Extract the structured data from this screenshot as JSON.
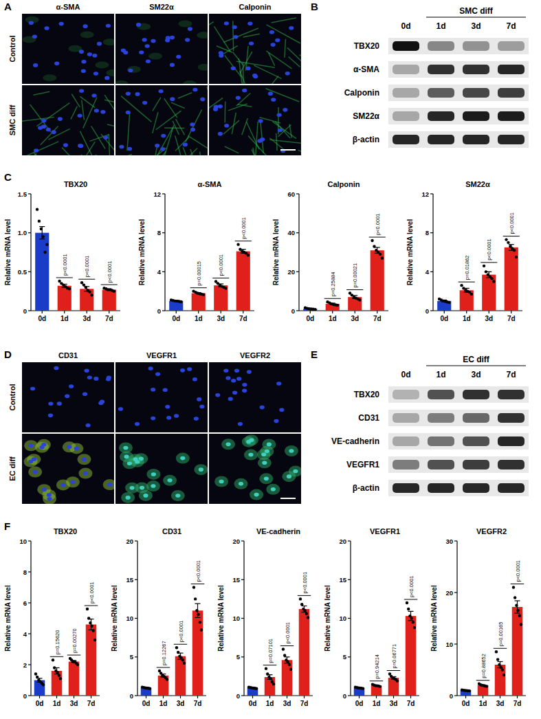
{
  "panel_labels": [
    "A",
    "B",
    "C",
    "D",
    "E",
    "F"
  ],
  "images": [
    {
      "columns": [
        "α-SMA",
        "SM22α",
        "Calponin"
      ],
      "rows": [
        "Control",
        "SMC diff"
      ]
    },
    {
      "columns": [
        "CD31",
        "VEGFR1",
        "VEGFR2"
      ],
      "rows": [
        "Control",
        "EC diff"
      ]
    }
  ],
  "blots": [
    {
      "group": "SMC diff",
      "lanes": [
        "0d",
        "1d",
        "3d",
        "7d"
      ],
      "rows": [
        {
          "name": "TBX20",
          "bands": [
            1.0,
            0.45,
            0.4,
            0.35
          ]
        },
        {
          "name": "α-SMA",
          "bands": [
            0.3,
            0.85,
            0.85,
            0.9
          ]
        },
        {
          "name": "Calponin",
          "bands": [
            0.3,
            0.65,
            0.75,
            0.8
          ]
        },
        {
          "name": "SM22α",
          "bands": [
            0.3,
            0.9,
            0.95,
            0.95
          ]
        },
        {
          "name": "β-actin",
          "bands": [
            0.9,
            0.9,
            0.9,
            0.9
          ]
        }
      ]
    },
    {
      "group": "EC diff",
      "lanes": [
        "0d",
        "1d",
        "3d",
        "7d"
      ],
      "rows": [
        {
          "name": "TBX20",
          "bands": [
            0.25,
            0.7,
            0.85,
            0.85
          ]
        },
        {
          "name": "CD31",
          "bands": [
            0.3,
            0.5,
            0.6,
            0.85
          ]
        },
        {
          "name": "VE-cadherin",
          "bands": [
            0.3,
            0.55,
            0.7,
            0.9
          ]
        },
        {
          "name": "VEGFR1",
          "bands": [
            0.5,
            0.7,
            0.8,
            0.85
          ]
        },
        {
          "name": "β-actin",
          "bands": [
            0.9,
            0.9,
            0.9,
            0.9
          ]
        }
      ]
    }
  ],
  "chart_data": [
    {
      "type": "bar",
      "title": "TBX20",
      "y_label": "Relative mRNA level",
      "categories": [
        "0d",
        "1d",
        "3d",
        "7d"
      ],
      "values": [
        1.0,
        0.32,
        0.28,
        0.27
      ],
      "errors": [
        0.08,
        0.02,
        0.03,
        0.01
      ],
      "points": [
        [
          1.3,
          1.15,
          1.05,
          0.95,
          0.75,
          0.85
        ],
        [
          0.38,
          0.35,
          0.33,
          0.31,
          0.29,
          0.28
        ],
        [
          0.36,
          0.33,
          0.3,
          0.26,
          0.24,
          0.2
        ],
        [
          0.29,
          0.28,
          0.27,
          0.27,
          0.26,
          0.25
        ]
      ],
      "colors": [
        "#1a3cc8",
        "#e0201b",
        "#e0201b",
        "#e0201b"
      ],
      "ylim": [
        0,
        1.5
      ],
      "yticks": [
        0,
        0.5,
        {
          "value": 1,
          "label": "1.0"
        },
        1.5
      ],
      "p_values": [
        null,
        "p<0.0001",
        "p<0.0001",
        "p<0.0001"
      ]
    },
    {
      "type": "bar",
      "title": "α-SMA",
      "y_label": "Relative mRNA level",
      "categories": [
        "0d",
        "1d",
        "3d",
        "7d"
      ],
      "values": [
        1.0,
        1.8,
        2.6,
        6.1
      ],
      "errors": [
        0.05,
        0.06,
        0.15,
        0.2
      ],
      "points": [
        [
          1.1,
          1.05,
          1.0,
          0.98,
          0.95,
          0.92
        ],
        [
          2.0,
          1.9,
          1.8,
          1.75,
          1.7,
          1.65
        ],
        [
          3.0,
          2.8,
          2.6,
          2.5,
          2.4,
          2.3
        ],
        [
          6.8,
          6.3,
          6.1,
          6.0,
          5.9,
          5.7
        ]
      ],
      "colors": [
        "#1a3cc8",
        "#e0201b",
        "#e0201b",
        "#e0201b"
      ],
      "ylim": [
        0,
        12
      ],
      "yticks": [
        0,
        4,
        8,
        12
      ],
      "p_values": [
        null,
        "p=0.00015",
        "p<0.0001",
        "p<0.0001"
      ]
    },
    {
      "type": "bar",
      "title": "Calponin",
      "y_label": "Relative mRNA level",
      "categories": [
        "0d",
        "1d",
        "3d",
        "7d"
      ],
      "values": [
        1.0,
        3.5,
        7.0,
        31.0
      ],
      "errors": [
        0.2,
        0.4,
        0.8,
        1.5
      ],
      "points": [
        [
          1.5,
          1.2,
          1.0,
          0.9,
          0.8,
          0.6
        ],
        [
          4.5,
          4.0,
          3.5,
          3.2,
          3.0,
          2.8
        ],
        [
          9,
          8,
          7,
          6.5,
          6,
          5.5
        ],
        [
          36,
          33,
          31,
          30,
          29,
          27
        ]
      ],
      "colors": [
        "#1a3cc8",
        "#e0201b",
        "#e0201b",
        "#e0201b"
      ],
      "ylim": [
        0,
        60
      ],
      "yticks": [
        0,
        20,
        40,
        60
      ],
      "p_values": [
        null,
        "p=0.25884",
        "p=0.00021",
        "p<0.0001"
      ]
    },
    {
      "type": "bar",
      "title": "SM22α",
      "y_label": "Relative mRNA level",
      "categories": [
        "0d",
        "1d",
        "3d",
        "7d"
      ],
      "values": [
        1.0,
        2.1,
        3.7,
        6.5
      ],
      "errors": [
        0.1,
        0.2,
        0.3,
        0.3
      ],
      "points": [
        [
          1.2,
          1.1,
          1.0,
          0.95,
          0.9,
          0.85
        ],
        [
          2.6,
          2.3,
          2.1,
          2.0,
          1.9,
          1.7
        ],
        [
          4.6,
          4.0,
          3.7,
          3.5,
          3.3,
          3.0
        ],
        [
          7.3,
          7.0,
          6.6,
          6.4,
          6.2,
          5.5
        ]
      ],
      "colors": [
        "#1a3cc8",
        "#e0201b",
        "#e0201b",
        "#e0201b"
      ],
      "ylim": [
        0,
        12
      ],
      "yticks": [
        0,
        4,
        8,
        12
      ],
      "p_values": [
        null,
        "p=0.01862",
        "p<0.0001",
        "p<0.0001"
      ]
    },
    {
      "type": "bar",
      "title": "TBX20",
      "y_label": "Relative mRNA level",
      "categories": [
        "0d",
        "1d",
        "3d",
        "7d"
      ],
      "values": [
        1.0,
        1.6,
        2.2,
        4.6
      ],
      "errors": [
        0.12,
        0.2,
        0.06,
        0.35
      ],
      "points": [
        [
          1.4,
          1.2,
          1.0,
          0.9,
          0.8,
          0.7
        ],
        [
          2.3,
          1.8,
          1.6,
          1.5,
          1.3,
          1.1
        ],
        [
          2.4,
          2.3,
          2.2,
          2.2,
          2.1,
          2.0
        ],
        [
          5.6,
          5.0,
          4.7,
          4.5,
          4.2,
          3.6
        ]
      ],
      "colors": [
        "#1a3cc8",
        "#e0201b",
        "#e0201b",
        "#e0201b"
      ],
      "ylim": [
        0,
        10
      ],
      "yticks": [
        0,
        2,
        4,
        6,
        8,
        10
      ],
      "p_values": [
        null,
        "p=0.15620",
        "p=0.00270",
        "p<0.0001"
      ]
    },
    {
      "type": "bar",
      "title": "CD31",
      "y_label": "Relative mRNA level",
      "categories": [
        "0d",
        "1d",
        "3d",
        "7d"
      ],
      "values": [
        1.0,
        2.6,
        5.1,
        11.0
      ],
      "errors": [
        0.05,
        0.2,
        0.4,
        0.9
      ],
      "points": [
        [
          1.1,
          1.05,
          1.0,
          0.98,
          0.95,
          0.92
        ],
        [
          3.2,
          2.9,
          2.6,
          2.5,
          2.3,
          2.1
        ],
        [
          6.2,
          5.6,
          5.1,
          4.9,
          4.6,
          4.2
        ],
        [
          14,
          12.5,
          11,
          10.5,
          9.5,
          8.5
        ]
      ],
      "colors": [
        "#1a3cc8",
        "#e0201b",
        "#e0201b",
        "#e0201b"
      ],
      "ylim": [
        0,
        20
      ],
      "yticks": [
        0,
        5,
        10,
        15,
        20
      ],
      "p_values": [
        null,
        "p=0.12267",
        "p<0.0001",
        "p<0.0001"
      ]
    },
    {
      "type": "bar",
      "title": "VE-cadherin",
      "y_label": "Relative mRNA level",
      "categories": [
        "0d",
        "1d",
        "3d",
        "7d"
      ],
      "values": [
        1.0,
        2.4,
        4.6,
        11.2
      ],
      "errors": [
        0.05,
        0.3,
        0.4,
        0.4
      ],
      "points": [
        [
          1.1,
          1.05,
          1.0,
          0.98,
          0.95,
          0.92
        ],
        [
          3.5,
          2.8,
          2.4,
          2.2,
          1.8,
          1.5
        ],
        [
          6.0,
          5.2,
          4.6,
          4.4,
          4.0,
          3.4
        ],
        [
          12.5,
          11.8,
          11.2,
          11.0,
          10.6,
          10.1
        ]
      ],
      "colors": [
        "#1a3cc8",
        "#e0201b",
        "#e0201b",
        "#e0201b"
      ],
      "ylim": [
        0,
        20
      ],
      "yticks": [
        0,
        5,
        10,
        15,
        20
      ],
      "p_values": [
        null,
        "p=0.07101",
        "p<0.0001",
        "p<0.0001"
      ]
    },
    {
      "type": "bar",
      "title": "VEGFR1",
      "y_label": "Relative mRNA level",
      "categories": [
        "0d",
        "1d",
        "3d",
        "7d"
      ],
      "values": [
        1.0,
        1.3,
        2.3,
        10.3
      ],
      "errors": [
        0.05,
        0.05,
        0.15,
        0.6
      ],
      "points": [
        [
          1.1,
          1.05,
          1.0,
          0.98,
          0.95,
          0.92
        ],
        [
          1.45,
          1.35,
          1.3,
          1.28,
          1.25,
          1.17
        ],
        [
          2.8,
          2.5,
          2.3,
          2.2,
          2.1,
          1.9
        ],
        [
          12,
          11.2,
          10.3,
          10,
          9.5,
          8.8
        ]
      ],
      "colors": [
        "#1a3cc8",
        "#e0201b",
        "#e0201b",
        "#e0201b"
      ],
      "ylim": [
        0,
        20
      ],
      "yticks": [
        0,
        5,
        10,
        15,
        20
      ],
      "p_values": [
        null,
        "p=0.94214",
        "p=0.06771",
        "p<0.0001"
      ]
    },
    {
      "type": "bar",
      "title": "VEGFR2",
      "y_label": "Relative mRNA level",
      "categories": [
        "0d",
        "1d",
        "3d",
        "7d"
      ],
      "values": [
        1.0,
        2.0,
        6.0,
        17.2
      ],
      "errors": [
        0.05,
        0.1,
        0.6,
        1.2
      ],
      "points": [
        [
          1.1,
          1.05,
          1.0,
          0.98,
          0.95,
          0.92
        ],
        [
          2.3,
          2.1,
          2.0,
          1.95,
          1.85,
          1.8
        ],
        [
          8.5,
          7,
          6,
          5.5,
          5,
          4
        ],
        [
          21,
          19,
          17.5,
          16.5,
          15.5,
          13.8
        ]
      ],
      "colors": [
        "#1a3cc8",
        "#e0201b",
        "#e0201b",
        "#e0201b"
      ],
      "ylim": [
        0,
        30
      ],
      "yticks": [
        0,
        10,
        20,
        30
      ],
      "p_values": [
        null,
        "p=0.88652",
        "p=0.00165",
        "p<0.0001"
      ]
    }
  ]
}
